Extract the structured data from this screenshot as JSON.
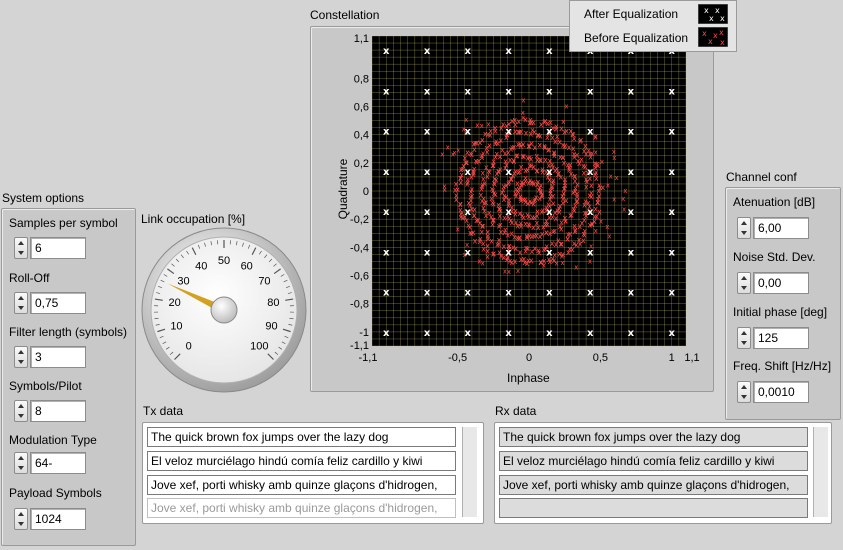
{
  "constellation": {
    "title": "Constellation",
    "xlabel": "Inphase",
    "ylabel": "Quadrature",
    "x_ticks": [
      "-1,1",
      "-0,5",
      "0",
      "0,5",
      "1",
      "1,1"
    ],
    "y_ticks": [
      "1,1",
      "0,8",
      "0,6",
      "0,4",
      "0,2",
      "0",
      "-0,2",
      "-0,4",
      "-0,6",
      "-0,8",
      "-1",
      "-1,1"
    ],
    "legend": [
      {
        "label": "After Equalization",
        "color": "#ffffff"
      },
      {
        "label": "Before Equalization",
        "color": "#ff4a4a"
      }
    ],
    "plot_bg": "#000000",
    "grid_color": "#c8c870"
  },
  "chart_data": {
    "type": "scatter",
    "title": "Constellation",
    "xlabel": "Inphase",
    "ylabel": "Quadrature",
    "xlim": [
      -1.1,
      1.1
    ],
    "ylim": [
      -1.1,
      1.1
    ],
    "grid": true,
    "legend_position": "top-right",
    "series": [
      {
        "name": "After Equalization",
        "color": "#ffffff",
        "marker": "x",
        "description_levels": [
          -1.0,
          -0.714,
          -0.429,
          -0.143,
          0.143,
          0.429,
          0.714,
          1.0
        ]
      },
      {
        "name": "Before Equalization",
        "color": "#ff4a4a",
        "marker": "x",
        "ring_radii": [
          0.08,
          0.17,
          0.25,
          0.33,
          0.42,
          0.5
        ]
      }
    ]
  },
  "system_options": {
    "title": "System options",
    "fields": [
      {
        "label": "Samples per symbol",
        "value": "6"
      },
      {
        "label": "Roll-Off",
        "value": "0,75"
      },
      {
        "label": "Filter length (symbols)",
        "value": "3"
      },
      {
        "label": "Symbols/Pilot",
        "value": "8"
      },
      {
        "label": "Modulation Type",
        "value": "64-"
      },
      {
        "label": "Payload Symbols",
        "value": "1024"
      }
    ]
  },
  "link": {
    "title": "Link occupation [%]",
    "value": 26,
    "ticks": [
      "0",
      "10",
      "20",
      "30",
      "40",
      "50",
      "60",
      "70",
      "80",
      "90",
      "100"
    ],
    "needle_color": "#d4a020"
  },
  "channel_conf": {
    "title": "Channel conf",
    "fields": [
      {
        "label": "Atenuation [dB]",
        "value": "6,00"
      },
      {
        "label": "Noise Std. Dev.",
        "value": "0,00"
      },
      {
        "label": "Initial phase [deg]",
        "value": "125"
      },
      {
        "label": "Freq. Shift [Hz/Hz]",
        "value": "0,0010"
      }
    ]
  },
  "tx": {
    "title": "Tx data",
    "lines": [
      "The quick brown fox jumps over the lazy dog",
      "El veloz murciélago hindú comía feliz cardillo y kiwi",
      "Jove xef, porti whisky amb quinze glaçons d'hidrogen,",
      "Jove xef, porti whisky amb quinze glaçons d'hidrogen,"
    ]
  },
  "rx": {
    "title": "Rx data",
    "lines": [
      "The quick brown fox jumps over the lazy dog",
      "El veloz murciélago hindú comía feliz cardillo y kiwi",
      "Jove xef, porti whisky amb quinze glaçons d'hidrogen,",
      ""
    ]
  }
}
